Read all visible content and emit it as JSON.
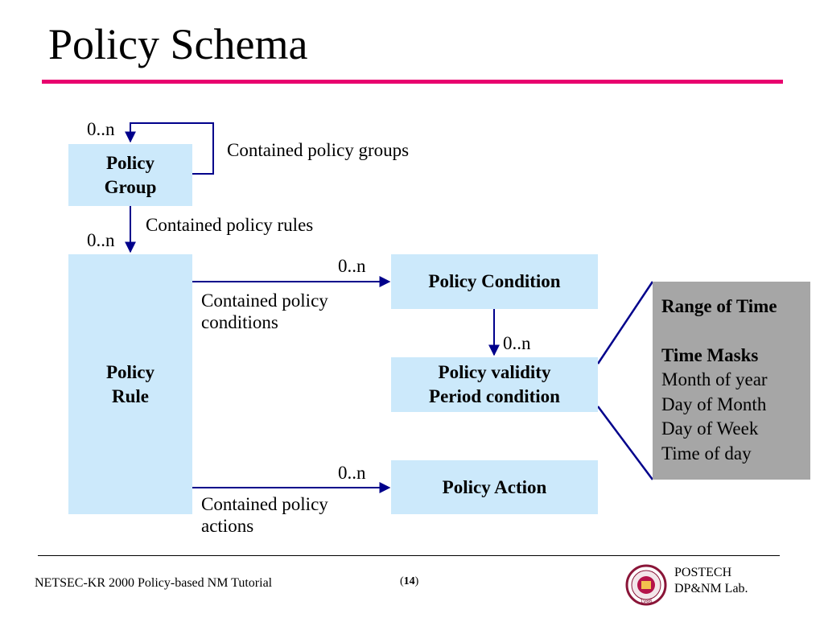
{
  "slide": {
    "title": "Policy Schema"
  },
  "boxes": {
    "policy_group": "Policy\nGroup",
    "policy_rule": "Policy\nRule",
    "policy_condition": "Policy Condition",
    "policy_validity": "Policy validity\nPeriod condition",
    "policy_action": "Policy Action"
  },
  "labels": {
    "contained_groups": "Contained policy groups",
    "contained_rules": "Contained policy rules",
    "contained_conditions": "Contained policy\nconditions",
    "contained_actions": "Contained policy\nactions"
  },
  "multiplicity": "0..n",
  "time_detail": {
    "heading1": "Range of Time",
    "heading2": "Time Masks",
    "items": [
      "Month of year",
      "Day of Month",
      "Day of Week",
      "Time of day"
    ]
  },
  "footer": {
    "left": "NETSEC-KR 2000 Policy-based NM Tutorial",
    "page_open": "(",
    "page_number": "14",
    "page_close": ")",
    "org": "POSTECH\nDP&NM Lab.",
    "seal_text": "1986"
  },
  "colors": {
    "title_rule": "#e8006e",
    "box_fill": "#cce9fb",
    "connector": "#00008b",
    "detail_fill": "#a6a6a6"
  }
}
